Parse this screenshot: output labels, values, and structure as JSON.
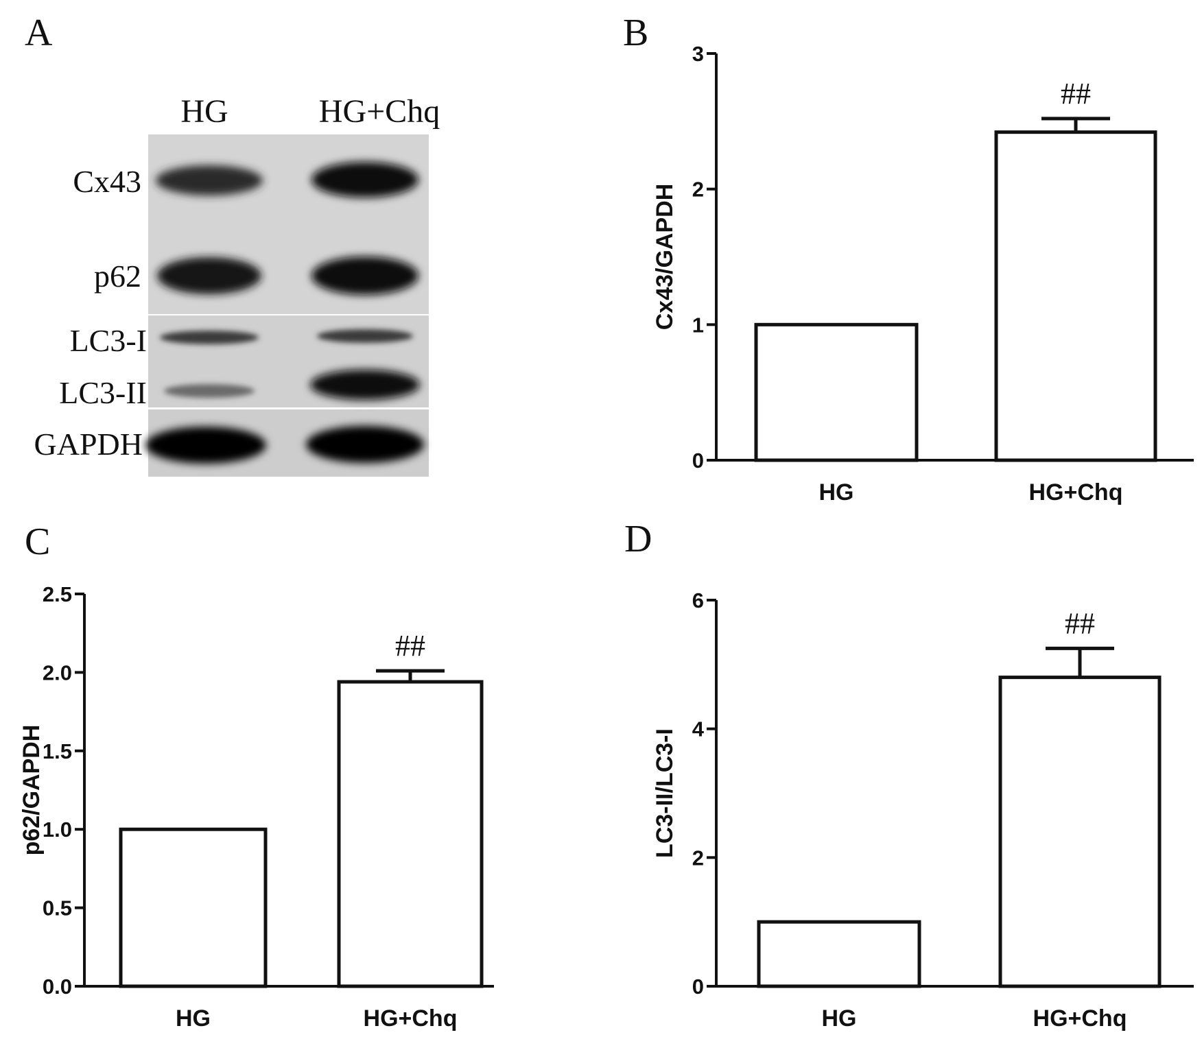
{
  "panels": {
    "A": {
      "letter": "A",
      "columns": [
        "HG",
        "HG+Chq"
      ],
      "rows": [
        "Cx43",
        "p62",
        "LC3-I",
        "LC3-II",
        "GAPDH"
      ]
    }
  },
  "chart_data": [
    {
      "panel": "B",
      "type": "bar",
      "categories": [
        "HG",
        "HG+Chq"
      ],
      "values": [
        1.0,
        2.42
      ],
      "errors": [
        0,
        0.1
      ],
      "annotations": [
        "",
        "##"
      ],
      "title": "",
      "xlabel": "",
      "ylabel": "Cx43/GAPDH",
      "ylim": [
        0,
        3
      ],
      "yticks": [
        0,
        1,
        2,
        3
      ],
      "ytick_labels": [
        "0",
        "1",
        "2",
        "3"
      ],
      "grid": false
    },
    {
      "panel": "C",
      "type": "bar",
      "categories": [
        "HG",
        "HG+Chq"
      ],
      "values": [
        1.0,
        1.94
      ],
      "errors": [
        0,
        0.07
      ],
      "annotations": [
        "",
        "##"
      ],
      "title": "",
      "xlabel": "",
      "ylabel": "p62/GAPDH",
      "ylim": [
        0,
        2.5
      ],
      "yticks": [
        0,
        0.5,
        1.0,
        1.5,
        2.0,
        2.5
      ],
      "ytick_labels": [
        "0.0",
        "0.5",
        "1.0",
        "1.5",
        "2.0",
        "2.5"
      ],
      "grid": false
    },
    {
      "panel": "D",
      "type": "bar",
      "categories": [
        "HG",
        "HG+Chq"
      ],
      "values": [
        1.0,
        4.8
      ],
      "errors": [
        0,
        0.45
      ],
      "annotations": [
        "",
        "##"
      ],
      "title": "",
      "xlabel": "",
      "ylabel": "LC3-II/LC3-I",
      "ylim": [
        0,
        6
      ],
      "yticks": [
        0,
        2,
        4,
        6
      ],
      "ytick_labels": [
        "0",
        "2",
        "4",
        "6"
      ],
      "grid": false
    }
  ]
}
